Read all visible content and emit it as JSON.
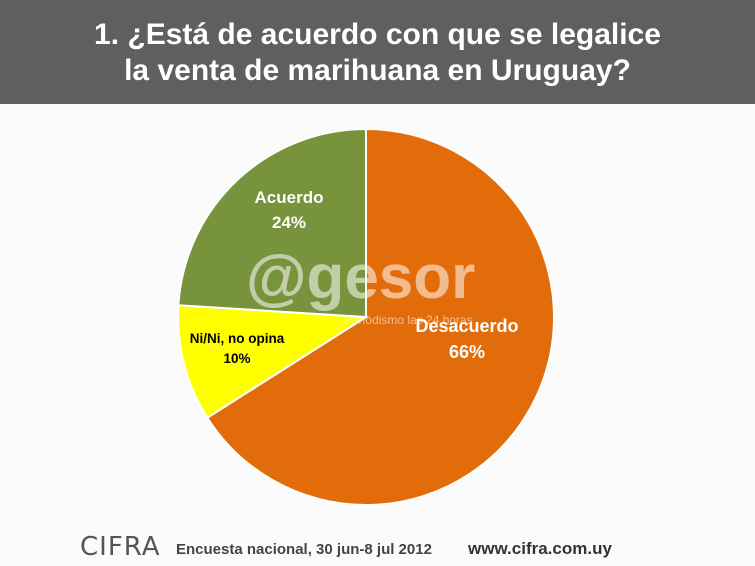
{
  "header": {
    "title_line1": "1.  ¿Está de acuerdo con que se legalice",
    "title_line2": "la venta de marihuana en Uruguay?"
  },
  "chart_data": {
    "type": "pie",
    "title": "1.  ¿Está de acuerdo con que se legalice la venta de marihuana en Uruguay?",
    "categories": [
      "Desacuerdo",
      "Ni/Ni, no opina",
      "Acuerdo"
    ],
    "values": [
      66,
      10,
      24
    ],
    "value_labels": [
      "66%",
      "10%",
      "24%"
    ],
    "colors": [
      "#e36c0a",
      "#ffff00",
      "#77933c"
    ],
    "start_angle_deg": 0,
    "direction": "clockwise",
    "legend": "none",
    "grid": false
  },
  "watermark": {
    "brand": "@gesor",
    "tagline": "Periodismo las 24 horas"
  },
  "footer": {
    "logo_text": "CIFRA",
    "survey": "Encuesta nacional,  30 jun-8 jul 2012",
    "url": "www.cifra.com.uy"
  }
}
